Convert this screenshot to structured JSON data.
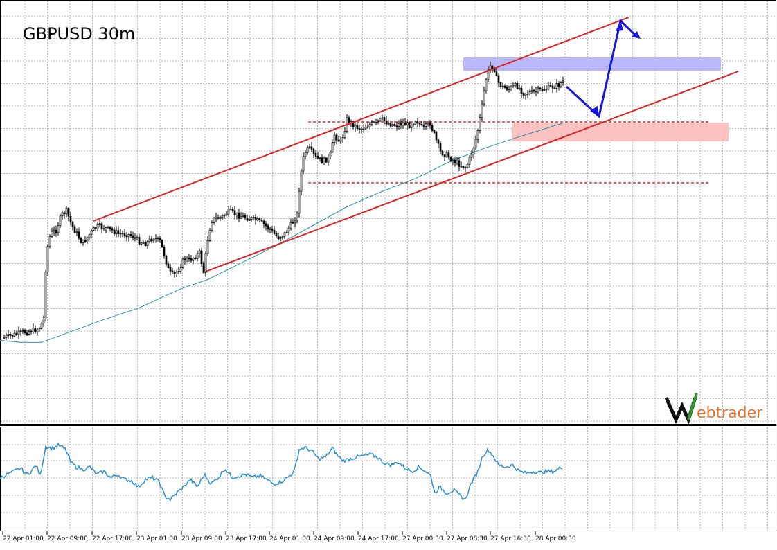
{
  "chart_data": {
    "type": "candlestick",
    "title": "GBPUSD 30m",
    "symbol": "GBPUSD",
    "timeframe": "30m",
    "x_tick_labels": [
      "22 Apr 01:00",
      "22 Apr 09:00",
      "22 Apr 17:00",
      "23 Apr 01:00",
      "23 Apr 09:00",
      "23 Apr 17:00",
      "24 Apr 01:00",
      "24 Apr 09:00",
      "24 Apr 17:00",
      "27 Apr 00:30",
      "27 Apr 08:30",
      "27 Apr 16:30",
      "28 Apr 00:30"
    ],
    "grid": true,
    "price_series": [
      [
        0,
        -0.65
      ],
      [
        30,
        -0.62
      ],
      [
        55,
        -0.6
      ],
      [
        62,
        -0.55
      ],
      [
        66,
        -0.2
      ],
      [
        72,
        -0.1
      ],
      [
        80,
        -0.08
      ],
      [
        88,
        0.0
      ],
      [
        95,
        0.02
      ],
      [
        102,
        -0.05
      ],
      [
        110,
        -0.1
      ],
      [
        118,
        -0.15
      ],
      [
        125,
        -0.12
      ],
      [
        133,
        -0.08
      ],
      [
        142,
        -0.06
      ],
      [
        150,
        -0.07
      ],
      [
        160,
        -0.08
      ],
      [
        170,
        -0.1
      ],
      [
        180,
        -0.1
      ],
      [
        190,
        -0.11
      ],
      [
        200,
        -0.14
      ],
      [
        210,
        -0.15
      ],
      [
        220,
        -0.12
      ],
      [
        230,
        -0.14
      ],
      [
        237,
        -0.22
      ],
      [
        243,
        -0.3
      ],
      [
        250,
        -0.32
      ],
      [
        258,
        -0.28
      ],
      [
        265,
        -0.23
      ],
      [
        272,
        -0.24
      ],
      [
        280,
        -0.22
      ],
      [
        287,
        -0.2
      ],
      [
        293,
        -0.3
      ],
      [
        300,
        -0.1
      ],
      [
        305,
        -0.03
      ],
      [
        310,
        -0.02
      ],
      [
        320,
        -0.01
      ],
      [
        330,
        0.02
      ],
      [
        340,
        0.0
      ],
      [
        350,
        -0.01
      ],
      [
        360,
        -0.02
      ],
      [
        370,
        -0.03
      ],
      [
        380,
        -0.05
      ],
      [
        390,
        -0.08
      ],
      [
        400,
        -0.12
      ],
      [
        410,
        -0.1
      ],
      [
        420,
        -0.05
      ],
      [
        428,
        0.0
      ],
      [
        432,
        0.18
      ],
      [
        438,
        0.32
      ],
      [
        445,
        0.35
      ],
      [
        455,
        0.3
      ],
      [
        465,
        0.28
      ],
      [
        475,
        0.3
      ],
      [
        482,
        0.42
      ],
      [
        490,
        0.38
      ],
      [
        495,
        0.42
      ],
      [
        500,
        0.5
      ],
      [
        510,
        0.47
      ],
      [
        520,
        0.45
      ],
      [
        530,
        0.47
      ],
      [
        540,
        0.48
      ],
      [
        550,
        0.5
      ],
      [
        560,
        0.48
      ],
      [
        570,
        0.47
      ],
      [
        580,
        0.48
      ],
      [
        590,
        0.47
      ],
      [
        600,
        0.5
      ],
      [
        610,
        0.45
      ],
      [
        620,
        0.48
      ],
      [
        628,
        0.4
      ],
      [
        635,
        0.33
      ],
      [
        645,
        0.31
      ],
      [
        655,
        0.28
      ],
      [
        665,
        0.26
      ],
      [
        672,
        0.25
      ],
      [
        678,
        0.3
      ],
      [
        685,
        0.38
      ],
      [
        690,
        0.46
      ],
      [
        695,
        0.57
      ],
      [
        700,
        0.7
      ],
      [
        706,
        0.78
      ],
      [
        712,
        0.78
      ],
      [
        717,
        0.7
      ],
      [
        725,
        0.67
      ],
      [
        735,
        0.66
      ],
      [
        745,
        0.68
      ],
      [
        755,
        0.64
      ],
      [
        765,
        0.64
      ],
      [
        775,
        0.65
      ],
      [
        785,
        0.66
      ],
      [
        795,
        0.67
      ],
      [
        805,
        0.68
      ],
      [
        812,
        0.7
      ]
    ],
    "moving_average": [
      [
        0,
        -0.66
      ],
      [
        30,
        -0.67
      ],
      [
        60,
        -0.67
      ],
      [
        90,
        -0.63
      ],
      [
        150,
        -0.55
      ],
      [
        200,
        -0.49
      ],
      [
        260,
        -0.39
      ],
      [
        300,
        -0.34
      ],
      [
        350,
        -0.25
      ],
      [
        400,
        -0.16
      ],
      [
        450,
        -0.06
      ],
      [
        500,
        0.04
      ],
      [
        550,
        0.12
      ],
      [
        600,
        0.19
      ],
      [
        650,
        0.28
      ],
      [
        700,
        0.35
      ],
      [
        750,
        0.41
      ],
      [
        812,
        0.48
      ]
    ],
    "oscillator_series": [
      [
        0,
        0.45
      ],
      [
        10,
        0.5
      ],
      [
        20,
        0.55
      ],
      [
        30,
        0.6
      ],
      [
        38,
        0.5
      ],
      [
        45,
        0.55
      ],
      [
        52,
        0.65
      ],
      [
        58,
        0.48
      ],
      [
        66,
        0.95
      ],
      [
        75,
        0.92
      ],
      [
        85,
        0.97
      ],
      [
        95,
        0.9
      ],
      [
        102,
        0.7
      ],
      [
        110,
        0.62
      ],
      [
        120,
        0.58
      ],
      [
        130,
        0.62
      ],
      [
        140,
        0.5
      ],
      [
        150,
        0.55
      ],
      [
        160,
        0.45
      ],
      [
        170,
        0.5
      ],
      [
        180,
        0.42
      ],
      [
        190,
        0.4
      ],
      [
        200,
        0.3
      ],
      [
        210,
        0.42
      ],
      [
        220,
        0.45
      ],
      [
        230,
        0.38
      ],
      [
        238,
        0.15
      ],
      [
        246,
        0.1
      ],
      [
        255,
        0.2
      ],
      [
        265,
        0.3
      ],
      [
        275,
        0.42
      ],
      [
        285,
        0.3
      ],
      [
        295,
        0.5
      ],
      [
        305,
        0.35
      ],
      [
        315,
        0.45
      ],
      [
        325,
        0.6
      ],
      [
        335,
        0.45
      ],
      [
        345,
        0.48
      ],
      [
        355,
        0.5
      ],
      [
        365,
        0.45
      ],
      [
        375,
        0.48
      ],
      [
        385,
        0.42
      ],
      [
        395,
        0.35
      ],
      [
        405,
        0.38
      ],
      [
        415,
        0.45
      ],
      [
        425,
        0.55
      ],
      [
        432,
        0.9
      ],
      [
        440,
        0.93
      ],
      [
        450,
        0.88
      ],
      [
        460,
        0.75
      ],
      [
        470,
        0.78
      ],
      [
        480,
        0.92
      ],
      [
        488,
        0.8
      ],
      [
        495,
        0.72
      ],
      [
        505,
        0.75
      ],
      [
        515,
        0.78
      ],
      [
        525,
        0.8
      ],
      [
        535,
        0.82
      ],
      [
        545,
        0.78
      ],
      [
        555,
        0.68
      ],
      [
        565,
        0.65
      ],
      [
        575,
        0.7
      ],
      [
        585,
        0.6
      ],
      [
        595,
        0.55
      ],
      [
        605,
        0.62
      ],
      [
        615,
        0.55
      ],
      [
        622,
        0.48
      ],
      [
        628,
        0.2
      ],
      [
        635,
        0.3
      ],
      [
        645,
        0.2
      ],
      [
        655,
        0.25
      ],
      [
        665,
        0.15
      ],
      [
        672,
        0.1
      ],
      [
        680,
        0.35
      ],
      [
        690,
        0.55
      ],
      [
        697,
        0.8
      ],
      [
        705,
        0.9
      ],
      [
        712,
        0.8
      ],
      [
        720,
        0.65
      ],
      [
        730,
        0.62
      ],
      [
        740,
        0.65
      ],
      [
        750,
        0.55
      ],
      [
        760,
        0.52
      ],
      [
        770,
        0.55
      ],
      [
        780,
        0.53
      ],
      [
        790,
        0.55
      ],
      [
        800,
        0.55
      ],
      [
        812,
        0.62
      ]
    ]
  }
}
